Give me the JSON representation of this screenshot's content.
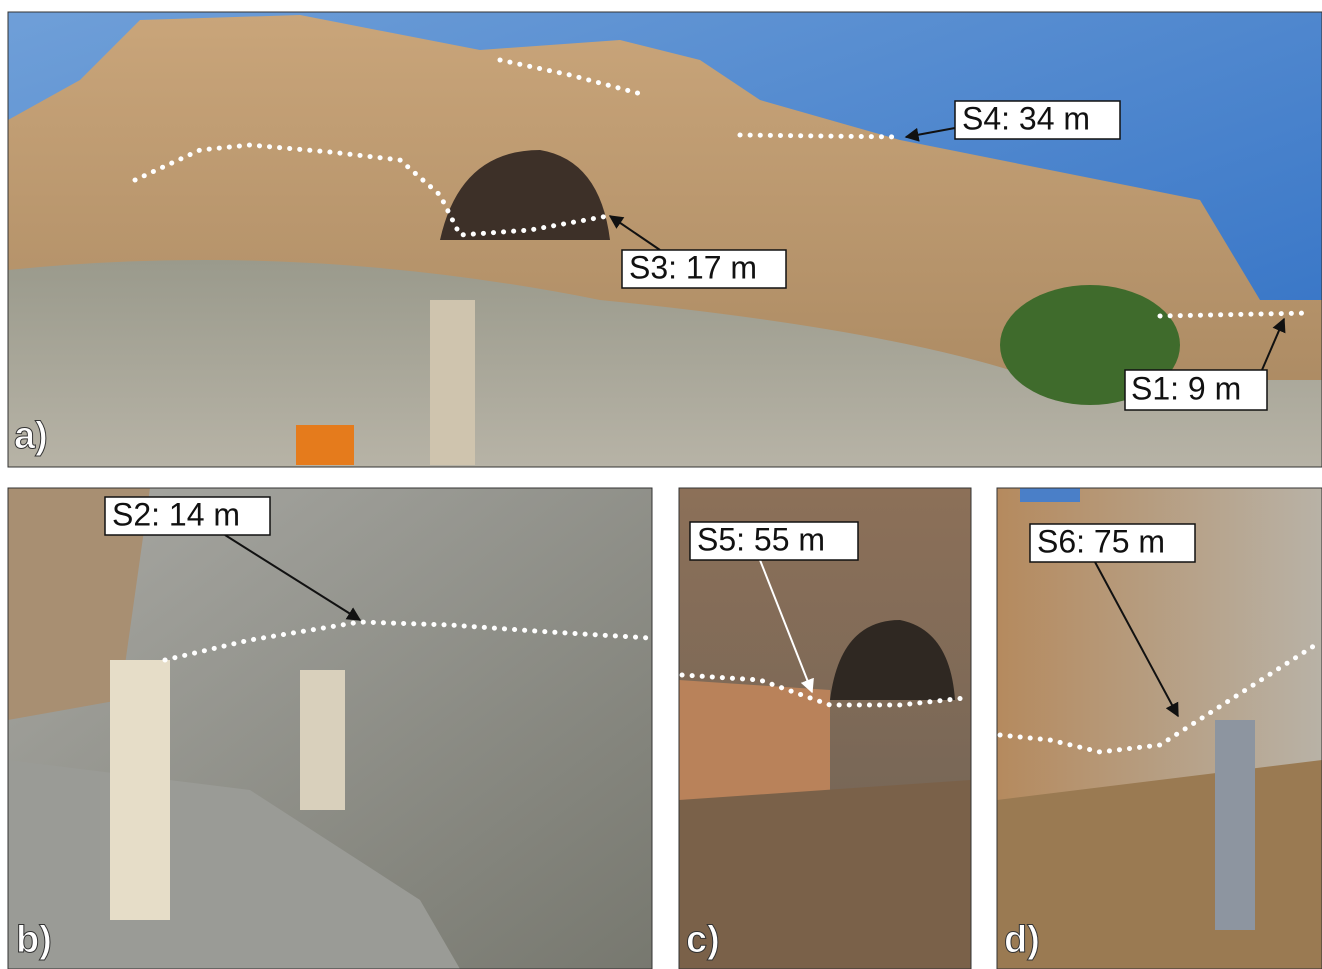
{
  "panels": [
    {
      "label": "a)",
      "annotations": [
        "S4: 34 m",
        "S3: 17 m",
        "S1: 9 m"
      ]
    },
    {
      "label": "b)",
      "annotations": [
        "S2: 14 m"
      ]
    },
    {
      "label": "c)",
      "annotations": [
        "S5: 55 m"
      ]
    },
    {
      "label": "d)",
      "annotations": [
        "S6: 75 m"
      ]
    }
  ]
}
